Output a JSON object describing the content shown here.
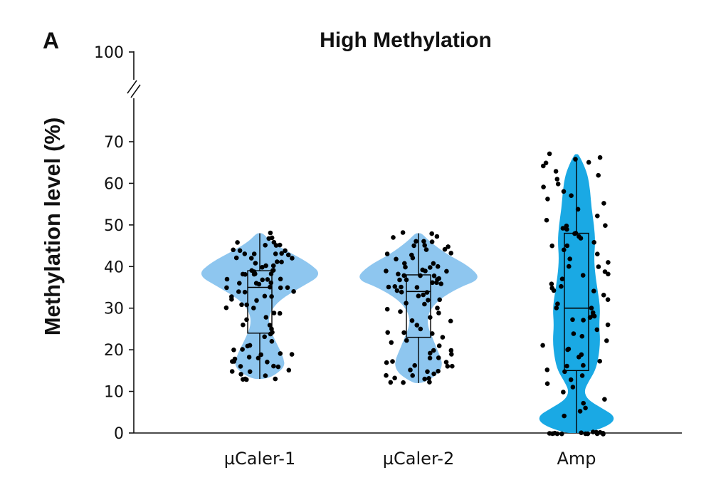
{
  "chart_data": {
    "type": "violin",
    "panel_label": "A",
    "title": "High Methylation",
    "ylabel": "Methylation level (%)",
    "xlabel": "",
    "ylim": [
      0,
      100
    ],
    "axis_break": [
      72,
      90
    ],
    "yticks": [
      0,
      10,
      20,
      30,
      40,
      50,
      60,
      70,
      100
    ],
    "colors": {
      "light": "#8ec6ef",
      "dark": "#1aa9e4",
      "point": "#000000",
      "line": "#000000"
    },
    "categories": [
      "µCaler-1",
      "µCaler-2",
      "Amp"
    ],
    "series": [
      {
        "name": "µCaler-1",
        "fill": "light",
        "box": {
          "q1": 24,
          "median": 35,
          "q3": 39,
          "whisker_low": 13,
          "whisker_high": 48
        },
        "violin_profile": [
          [
            13,
            0.1
          ],
          [
            14,
            0.25
          ],
          [
            16,
            0.4
          ],
          [
            18,
            0.38
          ],
          [
            20,
            0.32
          ],
          [
            23,
            0.22
          ],
          [
            26,
            0.14
          ],
          [
            29,
            0.16
          ],
          [
            32,
            0.32
          ],
          [
            35,
            0.65
          ],
          [
            38,
            1.0
          ],
          [
            41,
            0.78
          ],
          [
            44,
            0.4
          ],
          [
            46,
            0.18
          ],
          [
            48,
            0.05
          ]
        ],
        "points": [
          48,
          47,
          47,
          46,
          46,
          45,
          45,
          45,
          44,
          44,
          44,
          43,
          43,
          43,
          43,
          43,
          42,
          42,
          42,
          41,
          41,
          41,
          40,
          40,
          40,
          39,
          39,
          39,
          39,
          38,
          38,
          38,
          38,
          38,
          37,
          37,
          37,
          37,
          36,
          36,
          36,
          36,
          35,
          35,
          35,
          35,
          34,
          34,
          34,
          33,
          33,
          33,
          32,
          32,
          31,
          31,
          30,
          30,
          29,
          29,
          28,
          27,
          26,
          26,
          25,
          24,
          24,
          23,
          22,
          21,
          21,
          20,
          20,
          19,
          19,
          19,
          18,
          18,
          18,
          17,
          17,
          17,
          16,
          16,
          16,
          15,
          15,
          15,
          14,
          14,
          13,
          13,
          13,
          13
        ]
      },
      {
        "name": "µCaler-2",
        "fill": "light",
        "box": {
          "q1": 23,
          "median": 34,
          "q3": 38,
          "whisker_low": 12,
          "whisker_high": 48
        },
        "violin_profile": [
          [
            12,
            0.08
          ],
          [
            14,
            0.3
          ],
          [
            16,
            0.38
          ],
          [
            18,
            0.36
          ],
          [
            20,
            0.3
          ],
          [
            23,
            0.22
          ],
          [
            26,
            0.14
          ],
          [
            29,
            0.16
          ],
          [
            32,
            0.32
          ],
          [
            35,
            0.65
          ],
          [
            37,
            1.0
          ],
          [
            40,
            0.82
          ],
          [
            43,
            0.45
          ],
          [
            46,
            0.18
          ],
          [
            48,
            0.05
          ]
        ],
        "points": [
          48,
          48,
          47,
          47,
          46,
          46,
          46,
          45,
          45,
          45,
          44,
          44,
          43,
          43,
          43,
          42,
          42,
          41,
          41,
          40,
          40,
          40,
          39,
          39,
          39,
          39,
          38,
          38,
          38,
          38,
          37,
          37,
          37,
          37,
          36,
          36,
          36,
          35,
          35,
          35,
          35,
          34,
          34,
          34,
          33,
          33,
          32,
          32,
          31,
          31,
          30,
          30,
          29,
          29,
          28,
          27,
          27,
          26,
          25,
          24,
          24,
          24,
          23,
          22,
          22,
          21,
          20,
          20,
          19,
          19,
          18,
          18,
          17,
          17,
          17,
          16,
          16,
          16,
          15,
          15,
          15,
          14,
          14,
          14,
          13,
          13,
          13,
          12,
          12,
          12
        ]
      },
      {
        "name": "Amp",
        "fill": "dark",
        "box": {
          "q1": 15,
          "median": 30,
          "q3": 48,
          "whisker_low": 0,
          "whisker_high": 66
        },
        "violin_profile": [
          [
            0,
            0.18
          ],
          [
            2,
            0.55
          ],
          [
            4,
            0.62
          ],
          [
            6,
            0.4
          ],
          [
            8,
            0.18
          ],
          [
            10,
            0.12
          ],
          [
            12,
            0.18
          ],
          [
            15,
            0.3
          ],
          [
            18,
            0.35
          ],
          [
            22,
            0.38
          ],
          [
            26,
            0.36
          ],
          [
            30,
            0.38
          ],
          [
            34,
            0.34
          ],
          [
            38,
            0.3
          ],
          [
            42,
            0.28
          ],
          [
            46,
            0.3
          ],
          [
            50,
            0.28
          ],
          [
            54,
            0.24
          ],
          [
            58,
            0.22
          ],
          [
            62,
            0.18
          ],
          [
            65,
            0.1
          ],
          [
            67,
            0.03
          ]
        ],
        "points": [
          67,
          66,
          66,
          65,
          65,
          64,
          63,
          62,
          61,
          60,
          59,
          58,
          57,
          56,
          55,
          54,
          52,
          51,
          50,
          50,
          49,
          49,
          48,
          48,
          47,
          47,
          46,
          45,
          45,
          44,
          43,
          42,
          41,
          40,
          40,
          39,
          38,
          38,
          37,
          36,
          35,
          35,
          34,
          34,
          33,
          32,
          31,
          30,
          30,
          29,
          28,
          28,
          28,
          27,
          27,
          26,
          25,
          24,
          23,
          22,
          21,
          20,
          20,
          19,
          18,
          17,
          16,
          16,
          15,
          15,
          14,
          13,
          12,
          11,
          10,
          8,
          7,
          6,
          5,
          4,
          0,
          0,
          0,
          0,
          0,
          0,
          0,
          0,
          0,
          0,
          0,
          0,
          0,
          0
        ]
      }
    ]
  }
}
